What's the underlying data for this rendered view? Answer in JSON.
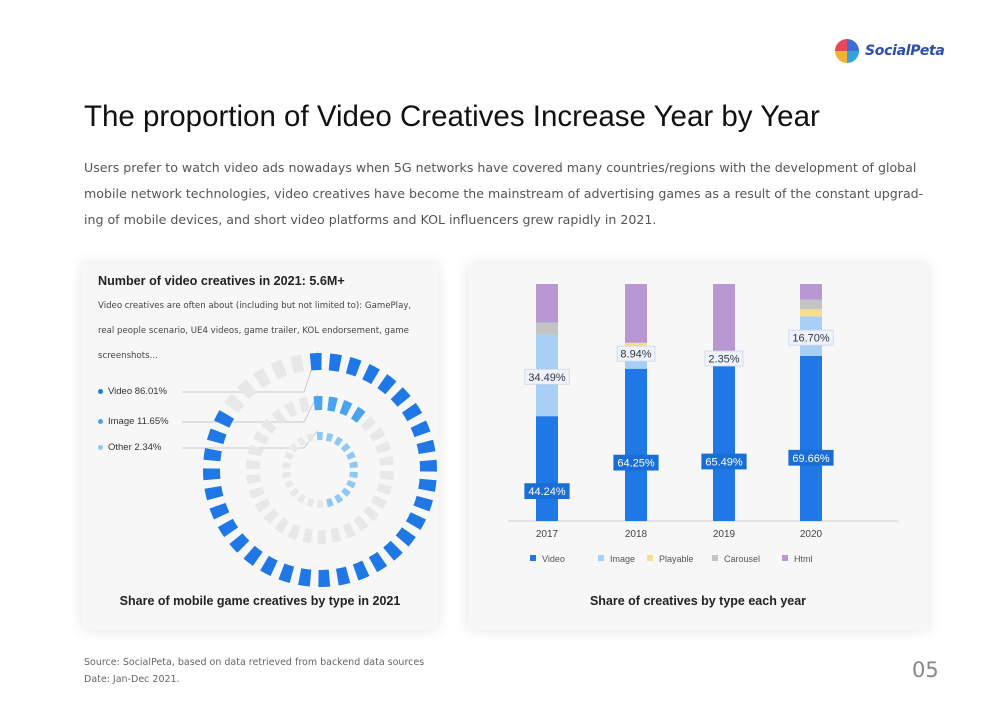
{
  "brand": {
    "name": "SocialPeta",
    "colors": [
      "#e5475c",
      "#3b6fd6",
      "#f2b233",
      "#33a3e0"
    ]
  },
  "title": "The proportion of Video Creatives Increase Year by Year",
  "description": "Users prefer to watch video ads nowadays when 5G networks have covered many countries/regions with the development of global mobile network technologies, video creatives have become the mainstream of advertising games as a result of the constant upgrad-ing of mobile devices, and short video platforms and KOL influencers grew rapidly in 2021.",
  "left_card": {
    "kpi": "Number of video creatives in 2021: 5.6M+",
    "kpi_desc": "Video creatives are often about (including but not limited to): GamePlay, real people scenario, UE4 videos, game trailer, KOL endorsement, game screenshots...",
    "caption": "Share of mobile game creatives by type in 2021"
  },
  "right_card": {
    "caption": "Share of creatives by type each year"
  },
  "chart_data": [
    {
      "type": "radial-bar",
      "title": "Share of mobile game creatives by type in 2021",
      "series": [
        {
          "name": "Video",
          "label": "Video 86.01%",
          "value": 86.01,
          "color": "#1f78e6"
        },
        {
          "name": "Image",
          "label": "Image 11.65%",
          "value": 11.65,
          "color": "#4aa3ee"
        },
        {
          "name": "Other",
          "label": "Other 2.34%",
          "value": 2.34,
          "color": "#8ec8f5"
        }
      ]
    },
    {
      "type": "stacked-bar",
      "title": "Share of creatives by type each year",
      "categories": [
        "2017",
        "2018",
        "2019",
        "2020"
      ],
      "series": [
        {
          "name": "Video",
          "color": "#1f78e6",
          "values": [
            44.24,
            64.25,
            65.49,
            69.66
          ]
        },
        {
          "name": "Image",
          "color": "#a8cff5",
          "values": [
            34.49,
            8.94,
            2.35,
            16.7
          ]
        },
        {
          "name": "Playable",
          "color": "#f7de8a",
          "values": [
            0,
            2.0,
            0,
            3.0
          ]
        },
        {
          "name": "Carousel",
          "color": "#c4c4c4",
          "values": [
            5.0,
            0,
            0,
            4.0
          ]
        },
        {
          "name": "Html",
          "color": "#b897d3",
          "values": [
            16.27,
            24.81,
            32.16,
            6.64
          ]
        }
      ],
      "data_labels": [
        {
          "category": "2017",
          "series": "Video",
          "text": "44.24%"
        },
        {
          "category": "2017",
          "series": "Image",
          "text": "34.49%"
        },
        {
          "category": "2018",
          "series": "Video",
          "text": "64.25%"
        },
        {
          "category": "2018",
          "series": "Image",
          "text": "8.94%"
        },
        {
          "category": "2019",
          "series": "Video",
          "text": "65.49%"
        },
        {
          "category": "2019",
          "series": "Image",
          "text": "2.35%"
        },
        {
          "category": "2020",
          "series": "Video",
          "text": "69.66%"
        },
        {
          "category": "2020",
          "series": "Image",
          "text": "16.70%"
        }
      ],
      "ylim": [
        0,
        100
      ],
      "legend": "bottom"
    }
  ],
  "footer": {
    "source": "Source: SocialPeta, based on data retrieved from backend data sources",
    "date": "Date: Jan-Dec 2021."
  },
  "page_number": "05"
}
